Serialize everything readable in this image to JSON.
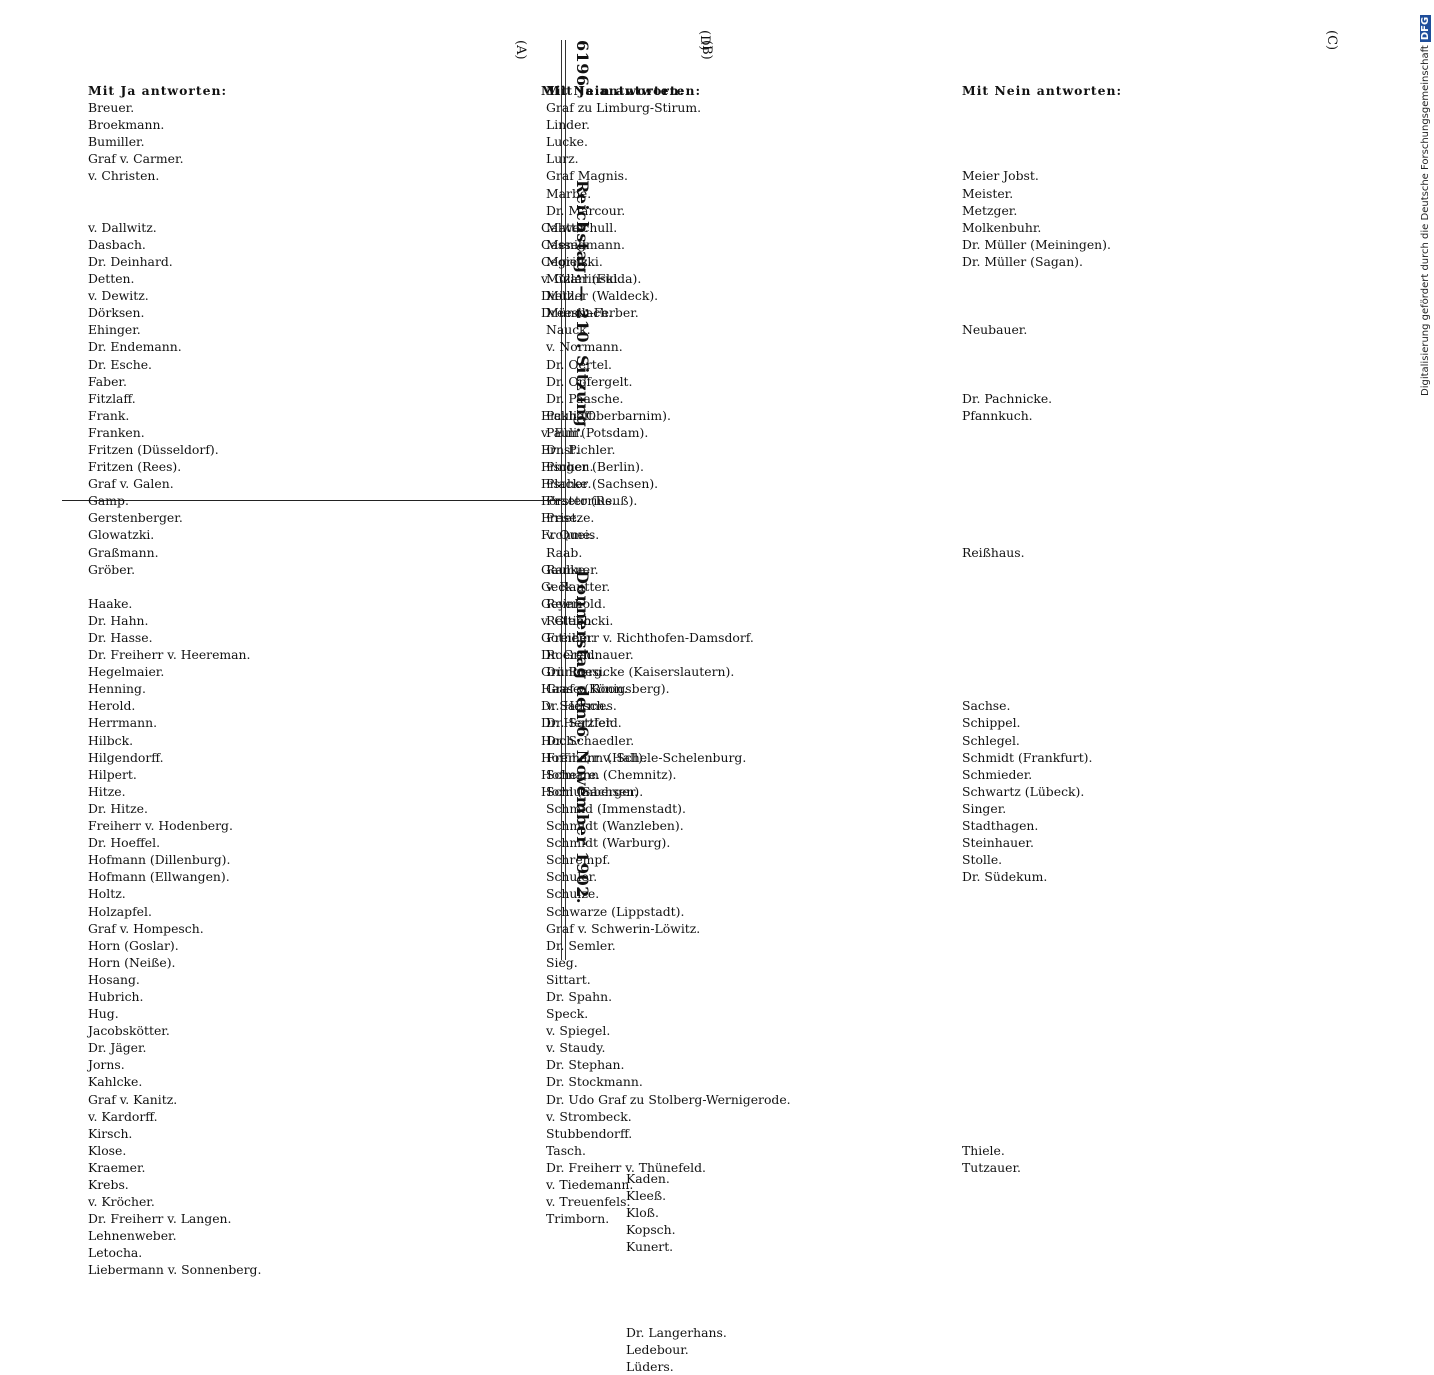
{
  "header": {
    "page_number": "6196",
    "title": "Reichstag. — 210. Sitzung.",
    "date": "Donnerstag den 6. November 1902."
  },
  "section_marks": [
    "(A)",
    "(B)",
    "(C)",
    "(D)"
  ],
  "columns": {
    "ja_left": {
      "heading": "Mit Ja antworten:",
      "names": [
        "Breuer.",
        "Broekmann.",
        "Bumiller.",
        "Graf v. Carmer.",
        "v. Christen.",
        "",
        "",
        "v. Dallwitz.",
        "Dasbach.",
        "Dr. Deinhard.",
        "Detten.",
        "v. Dewitz.",
        "Dörksen.",
        "Ehinger.",
        "Dr. Endemann.",
        "Dr. Esche.",
        "Faber.",
        "Fitzlaff.",
        "Frank.",
        "Franken.",
        "Fritzen (Düsseldorf).",
        "Fritzen (Rees).",
        "Graf v. Galen.",
        "Gamp.",
        "Gerstenberger.",
        "Glowatzki.",
        "Graßmann.",
        "Gröber.",
        "",
        "Haake.",
        "Dr. Hahn.",
        "Dr. Hasse.",
        "Dr. Freiherr v. Heereman.",
        "Hegelmaier.",
        "Henning.",
        "Herold.",
        "Herrmann.",
        "Hilbck.",
        "Hilgendorff.",
        "Hilpert.",
        "Hitze.",
        "Dr. Hitze.",
        "Freiherr v. Hodenberg.",
        "Dr. Hoeffel.",
        "Hofmann (Dillenburg).",
        "Hofmann (Ellwangen).",
        "Holtz.",
        "Holzapfel.",
        "Graf v. Hompesch.",
        "Horn (Goslar).",
        "Horn (Neiße).",
        "Hosang.",
        "Hubrich.",
        "Hug.",
        "Jacobskötter.",
        "Dr. Jäger.",
        "Jorns.",
        "Kahlcke.",
        "Graf v. Kanitz.",
        "v. Kardorff.",
        "Kirsch.",
        "Klose.",
        "Kraemer.",
        "Krebs.",
        "v. Kröcher.",
        "Dr. Freiherr v. Langen.",
        "Lehnenweber.",
        "Letocha.",
        "Liebermann v. Sonnenberg."
      ]
    },
    "nein_left": {
      "heading": "Mit Nein antworten:",
      "names": [
        "",
        "",
        "",
        "",
        "",
        "",
        "",
        "Calwer.",
        "Cassellmann.",
        "Cegielski.",
        "v. Czarlinski.",
        "Dietz.",
        "Dreesbach.",
        "",
        "",
        "",
        "",
        "",
        "Eickhoff.",
        "v. Elm.",
        "Ernst.",
        "Fischer (Berlin).",
        "Fischer (Sachsen).",
        "Förster (Reuß).",
        "Frese.",
        "Frohme.",
        "",
        "Gaulke.",
        "Geck.",
        "Geyer.",
        "v. Glebocki.",
        "Gothein.",
        "Dr. Gradnauer.",
        "Grünberg.",
        "Haase (Königsberg).",
        "Dr. Hermes.",
        "Dr. Herzfeld.",
        "Hoch.",
        "Hoffmann (Hall).",
        "Hofmann (Chemnitz).",
        "Horn (Sachsen)."
      ]
    },
    "nein_left_b": {
      "names": [
        "Kaden.",
        "Kleeß.",
        "Kloß.",
        "Kopsch.",
        "Kunert.",
        "",
        "",
        "",
        "",
        "Dr. Langerhans.",
        "Ledebour.",
        "Lüders."
      ]
    },
    "ja_right": {
      "heading": "Mit Ja antworten:",
      "names": [
        "Graf zu Limburg-Stirum.",
        "Linder.",
        "Lucke.",
        "Lurz.",
        "Graf Magnis.",
        "Marbe.",
        "Dr. Marcour.",
        "Mattschull.",
        "Menig.",
        "Moritz.",
        "Müller (Fulda).",
        "Müller (Waldeck).",
        "Münch-Ferber.",
        "Nauck.",
        "v. Normann.",
        "Dr. Oertel.",
        "Dr. Opfergelt.",
        "Dr. Paasche.",
        "Pauli (Oberbarnim).",
        "Pauli (Potsdam).",
        "Dr. Pichler.",
        "Pingen.",
        "Placke.",
        "Praetorius.",
        "Prietze.",
        "v. Queis.",
        "Raab.",
        "Ramner.",
        "v. Rautter.",
        "Reinhold.",
        "Rettich.",
        "Freiherr v. Richthofen-Damsdorf.",
        "Roeren.",
        "Dr. Roesicke (Kaiserslautern).",
        "Graf v. Roon.",
        "v. Salisch.",
        "Dr. Sattler.",
        "Dr. Schaedler.",
        "Freiherr v. Schele-Schelenburg.",
        "Scherre.",
        "Schlumberger.",
        "Schmid (Immenstadt).",
        "Schmidt (Wanzleben).",
        "Schmidt (Warburg).",
        "Schrempf.",
        "Schuler.",
        "Schulze.",
        "Schwarze (Lippstadt).",
        "Graf v. Schwerin-Löwitz.",
        "Dr. Semler.",
        "Sieg.",
        "Sittart.",
        "Dr. Spahn.",
        "Speck.",
        "v. Spiegel.",
        "v. Staudy.",
        "Dr. Stephan.",
        "Dr. Stockmann.",
        "Dr. Udo Graf zu Stolberg-Wernigerode.",
        "v. Strombeck.",
        "Stubbendorff.",
        "Tasch.",
        "Dr. Freiherr v. Thünefeld.",
        "v. Tiedemann.",
        "v. Treuenfels.",
        "Trimborn."
      ]
    },
    "nein_right": {
      "heading": "Mit Nein antworten:",
      "names": [
        "",
        "",
        "",
        "",
        "Meier Jobst.",
        "Meister.",
        "Metzger.",
        "Molkenbuhr.",
        "Dr. Müller (Meiningen).",
        "Dr. Müller (Sagan).",
        "",
        "",
        "",
        "Neubauer.",
        "",
        "",
        "",
        "Dr. Pachnicke.",
        "Pfannkuch.",
        "",
        "",
        "",
        "",
        "",
        "",
        "",
        "Reißhaus.",
        "",
        "",
        "",
        "",
        "",
        "",
        "",
        "",
        "Sachse.",
        "Schippel.",
        "Schlegel.",
        "Schmidt (Frankfurt).",
        "Schmieder.",
        "Schwartz (Lübeck).",
        "Singer.",
        "Stadthagen.",
        "Steinhauer.",
        "Stolle.",
        "Dr. Südekum.",
        "",
        "",
        "",
        "",
        "",
        "",
        "",
        "",
        "",
        "",
        "",
        "",
        "",
        "",
        "",
        "Thiele.",
        "Tutzauer."
      ]
    }
  },
  "side_note": "Digitalisierung gefördert durch die Deutsche Forschungsgemeinschaft",
  "side_logo": "DFG"
}
